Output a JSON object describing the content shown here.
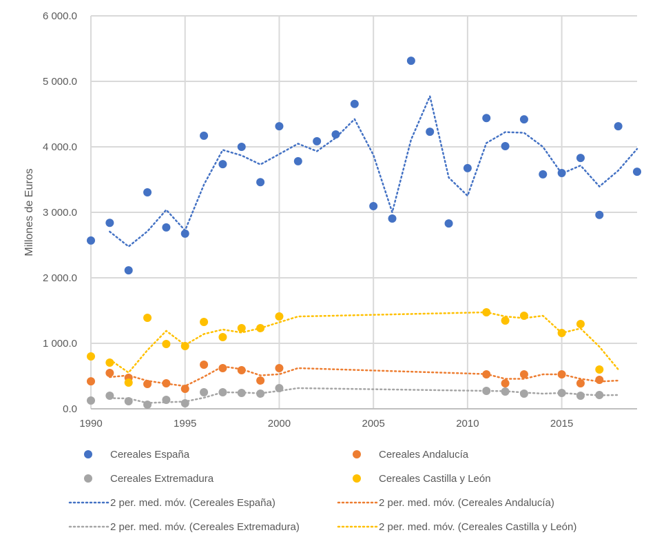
{
  "chart_data": {
    "type": "scatter",
    "title": "",
    "xlabel": "",
    "ylabel": "Millones de Euros",
    "xlim": [
      1990,
      2019
    ],
    "ylim": [
      0,
      6000
    ],
    "x_ticks": [
      1990,
      1995,
      2000,
      2005,
      2010,
      2015
    ],
    "x_tick_labels": [
      "1990",
      "1995",
      "2000",
      "2005",
      "2010",
      "2015"
    ],
    "y_ticks": [
      0,
      1000,
      2000,
      3000,
      4000,
      5000,
      6000
    ],
    "y_tick_labels": [
      "0.0",
      "1 000.0",
      "2 000.0",
      "3 000.0",
      "4 000.0",
      "5 000.0",
      "6 000.0"
    ],
    "grid": "both",
    "legend_position": "bottom",
    "x": [
      1990,
      1991,
      1992,
      1993,
      1994,
      1995,
      1996,
      1997,
      1998,
      1999,
      2000,
      2001,
      2002,
      2003,
      2004,
      2005,
      2006,
      2007,
      2008,
      2009,
      2010,
      2011,
      2012,
      2013,
      2014,
      2015,
      2016,
      2017,
      2018,
      2019
    ],
    "series": [
      {
        "name": "Cereales España",
        "color": "#4472C4",
        "kind": "points",
        "values": [
          2570,
          2840,
          2115,
          3305,
          2770,
          2675,
          4170,
          3735,
          4000,
          3460,
          4315,
          3780,
          4085,
          4190,
          4655,
          3095,
          2905,
          5315,
          4230,
          2830,
          3675,
          4440,
          4010,
          4420,
          3580,
          3600,
          3830,
          2960,
          4315,
          3620
        ]
      },
      {
        "name": "Cereales Andalucía",
        "color": "#ED7D31",
        "kind": "points",
        "values": [
          420,
          547,
          474,
          379,
          389,
          305,
          674,
          621,
          589,
          432,
          621,
          null,
          null,
          null,
          null,
          null,
          null,
          null,
          null,
          null,
          null,
          526,
          389,
          526,
          null,
          526,
          389,
          442,
          null,
          null
        ]
      },
      {
        "name": "Cereales Extremadura",
        "color": "#A5A5A5",
        "kind": "points",
        "values": [
          126,
          200,
          116,
          63,
          137,
          84,
          253,
          253,
          242,
          232,
          316,
          null,
          null,
          null,
          null,
          null,
          null,
          null,
          null,
          null,
          null,
          274,
          263,
          232,
          null,
          242,
          200,
          211,
          null,
          null
        ]
      },
      {
        "name": "Cereales Castilla y León",
        "color": "#FFC000",
        "kind": "points",
        "values": [
          800,
          705,
          400,
          1390,
          990,
          958,
          1326,
          1095,
          1232,
          1232,
          1410,
          null,
          null,
          null,
          null,
          null,
          null,
          null,
          null,
          null,
          null,
          1474,
          1347,
          1421,
          null,
          1158,
          1295,
          600,
          null,
          null
        ]
      },
      {
        "name": "2 per. med. móv. (Cereales España)",
        "color": "#4472C4",
        "kind": "moving-average",
        "values": [
          null,
          2705,
          2478,
          2710,
          3038,
          2723,
          3423,
          3953,
          3868,
          3730,
          3888,
          4048,
          3933,
          4138,
          4423,
          3875,
          3000,
          4110,
          4773,
          3530,
          3253,
          4058,
          4225,
          4215,
          4000,
          3590,
          3715,
          3395,
          3638,
          3968
        ]
      },
      {
        "name": "2 per. med. móv. (Cereales Andalucía)",
        "color": "#ED7D31",
        "kind": "moving-average",
        "values": [
          null,
          484,
          511,
          427,
          384,
          347,
          490,
          648,
          605,
          511,
          527,
          621,
          null,
          null,
          null,
          null,
          null,
          null,
          null,
          null,
          null,
          530,
          458,
          458,
          526,
          526,
          458,
          416,
          432,
          null
        ]
      },
      {
        "name": "2 per. med. móv. (Cereales Extremadura)",
        "color": "#A5A5A5",
        "kind": "moving-average",
        "values": [
          null,
          163,
          158,
          90,
          100,
          111,
          169,
          253,
          248,
          237,
          274,
          316,
          null,
          null,
          null,
          null,
          null,
          null,
          null,
          null,
          null,
          274,
          269,
          248,
          232,
          242,
          221,
          206,
          211,
          null
        ]
      },
      {
        "name": "2 per. med. móv. (Cereales Castilla y León)",
        "color": "#FFC000",
        "kind": "moving-average",
        "values": [
          null,
          753,
          553,
          895,
          1190,
          974,
          1142,
          1211,
          1164,
          1232,
          1321,
          1410,
          null,
          null,
          null,
          null,
          null,
          null,
          null,
          null,
          null,
          1474,
          1411,
          1384,
          1421,
          1158,
          1227,
          948,
          600,
          null
        ]
      }
    ]
  },
  "legend": {
    "items": [
      {
        "label": "Cereales España",
        "series": 0
      },
      {
        "label": "Cereales Andalucía",
        "series": 1
      },
      {
        "label": "Cereales Extremadura",
        "series": 2
      },
      {
        "label": "Cereales Castilla y León",
        "series": 3
      },
      {
        "label": "2 per. med. móv. (Cereales España)",
        "series": 4
      },
      {
        "label": "2 per. med. móv. (Cereales Andalucía)",
        "series": 5
      },
      {
        "label": "2 per. med. móv. (Cereales Extremadura)",
        "series": 6
      },
      {
        "label": "2 per. med. móv. (Cereales Castilla y León)",
        "series": 7
      }
    ]
  }
}
